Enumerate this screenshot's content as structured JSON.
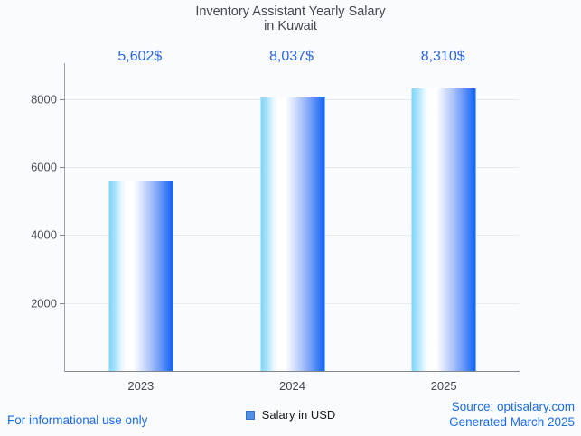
{
  "title": {
    "line1": "Inventory Assistant Yearly Salary",
    "line2": "in Kuwait"
  },
  "chart_data": {
    "type": "bar",
    "title": "Inventory Assistant Yearly Salary in Kuwait",
    "categories": [
      "2023",
      "2024",
      "2025"
    ],
    "values": [
      5602,
      8037,
      8310
    ],
    "value_labels": [
      "5,602$",
      "8,037$",
      "8,310$"
    ],
    "series_name": "Salary in USD",
    "xlabel": "",
    "ylabel": "",
    "ylim": [
      0,
      9050
    ],
    "yticks": [
      2000,
      4000,
      6000,
      8000
    ],
    "grid": true,
    "legend_position": "bottom"
  },
  "legend": {
    "label": "Salary in USD"
  },
  "footer": {
    "left": "For informational use only",
    "source": "Source: optisalary.com",
    "generated": "Generated March 2025"
  },
  "colors": {
    "accent_blue": "#2767e4",
    "footer_blue": "#1a6ce4",
    "legend_swatch": "#4d92e6",
    "bar_gradient_left": "#7fd4fb",
    "bar_gradient_mid": "#ffffff",
    "bar_gradient_right": "#0b63f7",
    "gridline": "#e8eaed",
    "background": "#fafbfe",
    "title_text": "#45484c"
  }
}
